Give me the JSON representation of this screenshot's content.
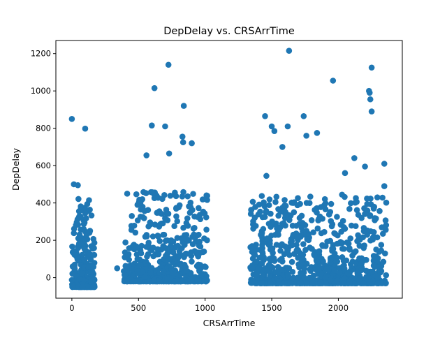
{
  "chart_data": {
    "type": "scatter",
    "title": "DepDelay vs. CRSArrTime",
    "xlabel": "CRSArrTime",
    "ylabel": "DepDelay",
    "xlim": [
      -120,
      2480
    ],
    "ylim": [
      -110,
      1270
    ],
    "xticks": [
      0,
      500,
      1000,
      1500,
      2000
    ],
    "yticks": [
      0,
      200,
      400,
      600,
      800,
      1000,
      1200
    ],
    "grid": false,
    "marker_color": "#1f77b4",
    "clusters": [
      {
        "x_range": [
          0,
          170
        ],
        "y_range": [
          -50,
          500
        ],
        "count": 260
      },
      {
        "x_range": [
          390,
          1020
        ],
        "y_range": [
          -20,
          1140
        ],
        "count": 520
      },
      {
        "x_range": [
          1340,
          2360
        ],
        "y_range": [
          -30,
          1210
        ],
        "count": 900
      }
    ],
    "outliers": [
      {
        "x": 0,
        "y": 850
      },
      {
        "x": 100,
        "y": 798
      },
      {
        "x": 15,
        "y": 500
      },
      {
        "x": 45,
        "y": 495
      },
      {
        "x": 100,
        "y": 345
      },
      {
        "x": 340,
        "y": 50
      },
      {
        "x": 450,
        "y": 330
      },
      {
        "x": 560,
        "y": 655
      },
      {
        "x": 600,
        "y": 815
      },
      {
        "x": 620,
        "y": 1015
      },
      {
        "x": 700,
        "y": 810
      },
      {
        "x": 725,
        "y": 1140
      },
      {
        "x": 730,
        "y": 665
      },
      {
        "x": 830,
        "y": 755
      },
      {
        "x": 835,
        "y": 725
      },
      {
        "x": 840,
        "y": 920
      },
      {
        "x": 900,
        "y": 720
      },
      {
        "x": 1015,
        "y": -15
      },
      {
        "x": 1450,
        "y": 865
      },
      {
        "x": 1460,
        "y": 545
      },
      {
        "x": 1500,
        "y": 810
      },
      {
        "x": 1520,
        "y": 785
      },
      {
        "x": 1580,
        "y": 700
      },
      {
        "x": 1620,
        "y": 810
      },
      {
        "x": 1630,
        "y": 1215
      },
      {
        "x": 1740,
        "y": 865
      },
      {
        "x": 1760,
        "y": 760
      },
      {
        "x": 1840,
        "y": 775
      },
      {
        "x": 1960,
        "y": 1055
      },
      {
        "x": 2050,
        "y": 560
      },
      {
        "x": 2120,
        "y": 640
      },
      {
        "x": 2200,
        "y": 595
      },
      {
        "x": 2230,
        "y": 1000
      },
      {
        "x": 2235,
        "y": 990
      },
      {
        "x": 2240,
        "y": 955
      },
      {
        "x": 2250,
        "y": 1125
      },
      {
        "x": 2250,
        "y": 890
      },
      {
        "x": 2345,
        "y": 610
      },
      {
        "x": 2345,
        "y": 490
      }
    ]
  }
}
